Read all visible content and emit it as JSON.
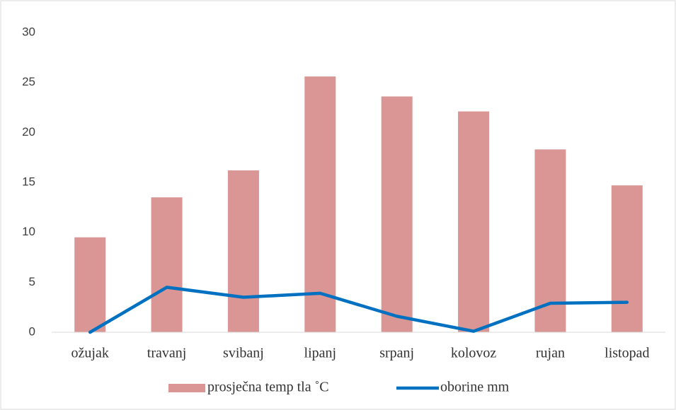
{
  "chart_data": {
    "type": "combo",
    "categories": [
      "ožujak",
      "travanj",
      "svibanj",
      "lipanj",
      "srpanj",
      "kolovoz",
      "rujan",
      "listopad"
    ],
    "series": [
      {
        "name": "prosječna temp tla ˚C",
        "type": "bar",
        "color": "#d99694",
        "values": [
          9.5,
          13.5,
          16.2,
          25.6,
          23.6,
          22.1,
          18.3,
          14.7
        ]
      },
      {
        "name": "oborine mm",
        "type": "line",
        "color": "#0070c0",
        "values": [
          0,
          4.5,
          3.5,
          3.9,
          1.6,
          0.1,
          2.9,
          3.0
        ]
      }
    ],
    "ylim": [
      0,
      30
    ],
    "yticks": [
      0,
      5,
      10,
      15,
      20,
      25,
      30
    ],
    "grid": false,
    "legend": "bottom"
  }
}
